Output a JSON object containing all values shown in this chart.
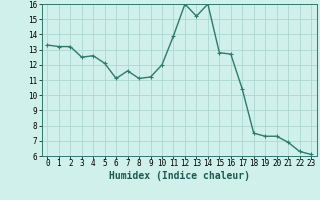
{
  "x": [
    0,
    1,
    2,
    3,
    4,
    5,
    6,
    7,
    8,
    9,
    10,
    11,
    12,
    13,
    14,
    15,
    16,
    17,
    18,
    19,
    20,
    21,
    22,
    23
  ],
  "y": [
    13.3,
    13.2,
    13.2,
    12.5,
    12.6,
    12.1,
    11.1,
    11.6,
    11.1,
    11.2,
    12.0,
    13.9,
    16.0,
    15.2,
    16.0,
    12.8,
    12.7,
    10.4,
    7.5,
    7.3,
    7.3,
    6.9,
    6.3,
    6.1
  ],
  "line_color": "#2d7a6e",
  "marker": "+",
  "marker_size": 3,
  "linewidth": 1.0,
  "xlabel": "Humidex (Indice chaleur)",
  "xlabel_fontsize": 7,
  "background_color": "#cff0eb",
  "grid_color": "#aed8d2",
  "ylim": [
    6,
    16
  ],
  "xlim": [
    -0.5,
    23.5
  ],
  "yticks": [
    6,
    7,
    8,
    9,
    10,
    11,
    12,
    13,
    14,
    15,
    16
  ],
  "xticks": [
    0,
    1,
    2,
    3,
    4,
    5,
    6,
    7,
    8,
    9,
    10,
    11,
    12,
    13,
    14,
    15,
    16,
    17,
    18,
    19,
    20,
    21,
    22,
    23
  ],
  "tick_fontsize": 5.5,
  "spine_color": "#2d7a6e"
}
